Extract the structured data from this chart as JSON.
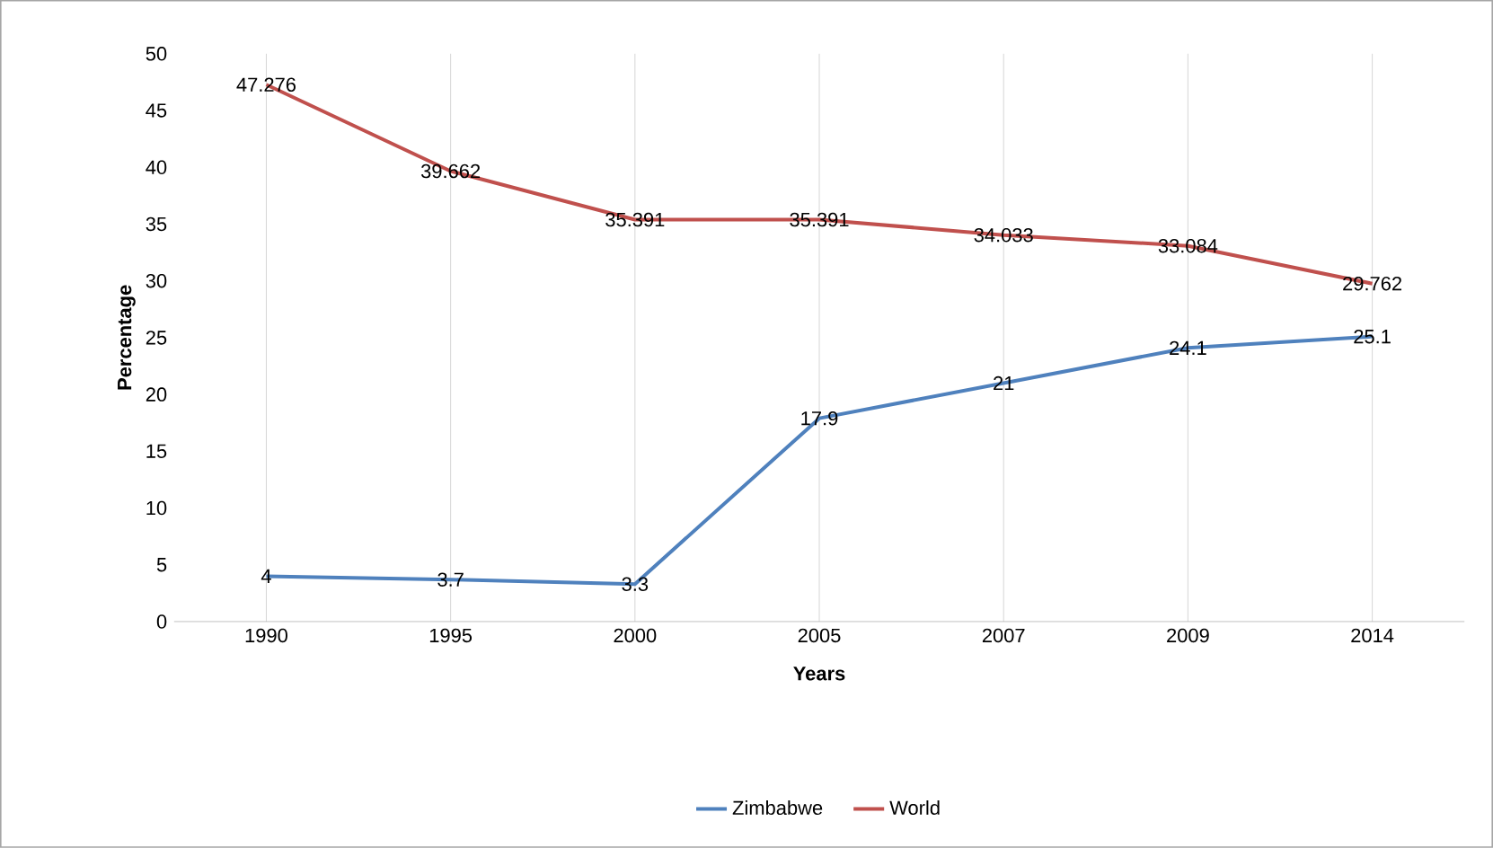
{
  "chart_data": {
    "type": "line",
    "xlabel": "Years",
    "ylabel": "Percentage",
    "categories": [
      "1990",
      "1995",
      "2000",
      "2005",
      "2007",
      "2009",
      "2014"
    ],
    "series": [
      {
        "name": "Zimbabwe",
        "color": "#4f81bd",
        "values": [
          4,
          3.7,
          3.3,
          17.9,
          21,
          24.1,
          25.1
        ]
      },
      {
        "name": "World",
        "color": "#c0504d",
        "values": [
          47.276,
          39.662,
          35.391,
          35.391,
          34.033,
          33.084,
          29.762
        ]
      }
    ],
    "ylim": [
      0,
      50
    ],
    "yticks": [
      0,
      5,
      10,
      15,
      20,
      25,
      30,
      35,
      40,
      45,
      50
    ],
    "grid": "x",
    "legend": "bottom",
    "data_labels": true,
    "marker": "none",
    "line_style": "solid"
  }
}
